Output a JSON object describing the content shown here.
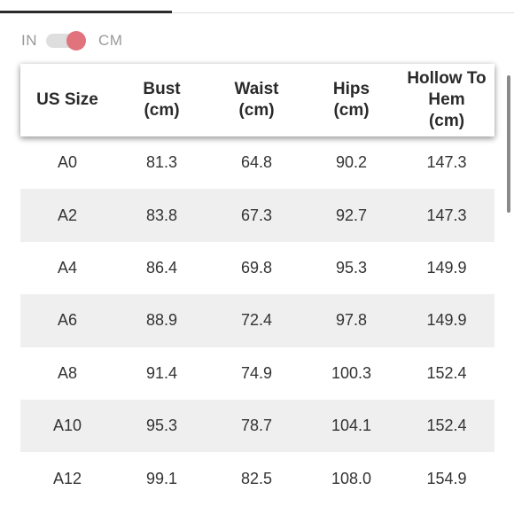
{
  "unit_toggle": {
    "left_label": "IN",
    "right_label": "CM",
    "selected": "CM",
    "knob_color": "#e0737b"
  },
  "table": {
    "headers": [
      "US Size",
      "Bust\n(cm)",
      "Waist\n(cm)",
      "Hips\n(cm)",
      "Hollow To\nHem\n(cm)"
    ],
    "rows": [
      [
        "A0",
        "81.3",
        "64.8",
        "90.2",
        "147.3"
      ],
      [
        "A2",
        "83.8",
        "67.3",
        "92.7",
        "147.3"
      ],
      [
        "A4",
        "86.4",
        "69.8",
        "95.3",
        "149.9"
      ],
      [
        "A6",
        "88.9",
        "72.4",
        "97.8",
        "149.9"
      ],
      [
        "A8",
        "91.4",
        "74.9",
        "100.3",
        "152.4"
      ],
      [
        "A10",
        "95.3",
        "78.7",
        "104.1",
        "152.4"
      ],
      [
        "A12",
        "99.1",
        "82.5",
        "108.0",
        "154.9"
      ]
    ]
  },
  "colors": {
    "stripe_row": "#efefef",
    "header_text": "#2a2a2a"
  }
}
